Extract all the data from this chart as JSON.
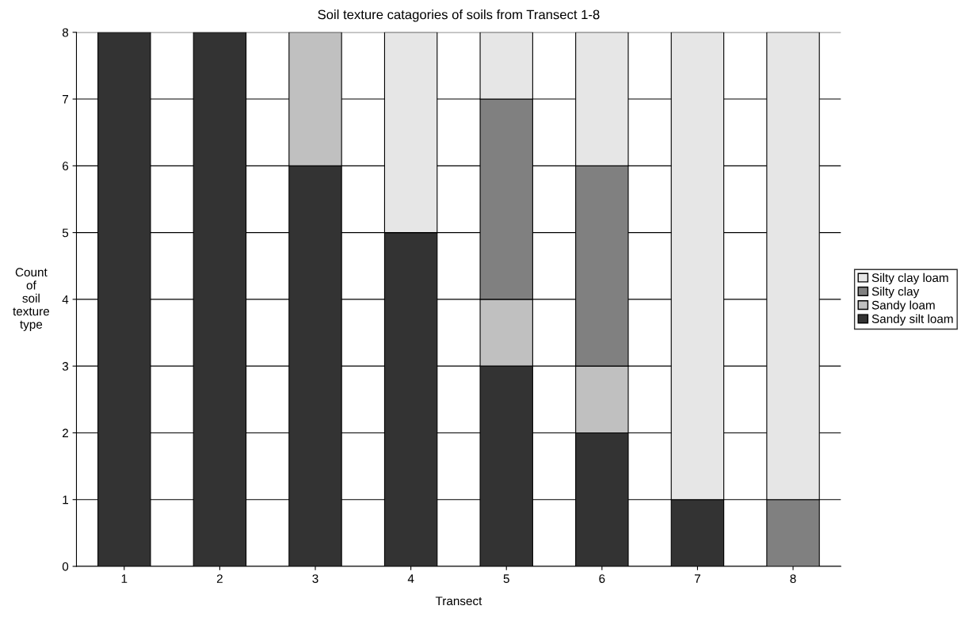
{
  "chart_data": {
    "type": "bar",
    "title": "Soil texture catagories of soils from Transect 1-8",
    "xlabel": "Transect",
    "ylabel": "Count\nof\nsoil\ntexture\ntype",
    "categories": [
      "1",
      "2",
      "3",
      "4",
      "5",
      "6",
      "7",
      "8"
    ],
    "stacked": true,
    "series": [
      {
        "name": "Sandy silt loam",
        "color": "#333333",
        "values": [
          8,
          8,
          6,
          5,
          3,
          2,
          1,
          0
        ]
      },
      {
        "name": "Sandy loam",
        "color": "#c0c0c0",
        "values": [
          0,
          0,
          2,
          0,
          1,
          1,
          0,
          0
        ]
      },
      {
        "name": "Silty clay",
        "color": "#808080",
        "values": [
          0,
          0,
          0,
          0,
          3,
          3,
          0,
          1
        ]
      },
      {
        "name": "Silty clay loam",
        "color": "#e6e6e6",
        "values": [
          0,
          0,
          0,
          3,
          1,
          2,
          7,
          7
        ]
      }
    ],
    "ylim": [
      0,
      8
    ],
    "yticks": [
      0,
      1,
      2,
      3,
      4,
      5,
      6,
      7,
      8
    ],
    "grid": "y",
    "legend": "right"
  }
}
